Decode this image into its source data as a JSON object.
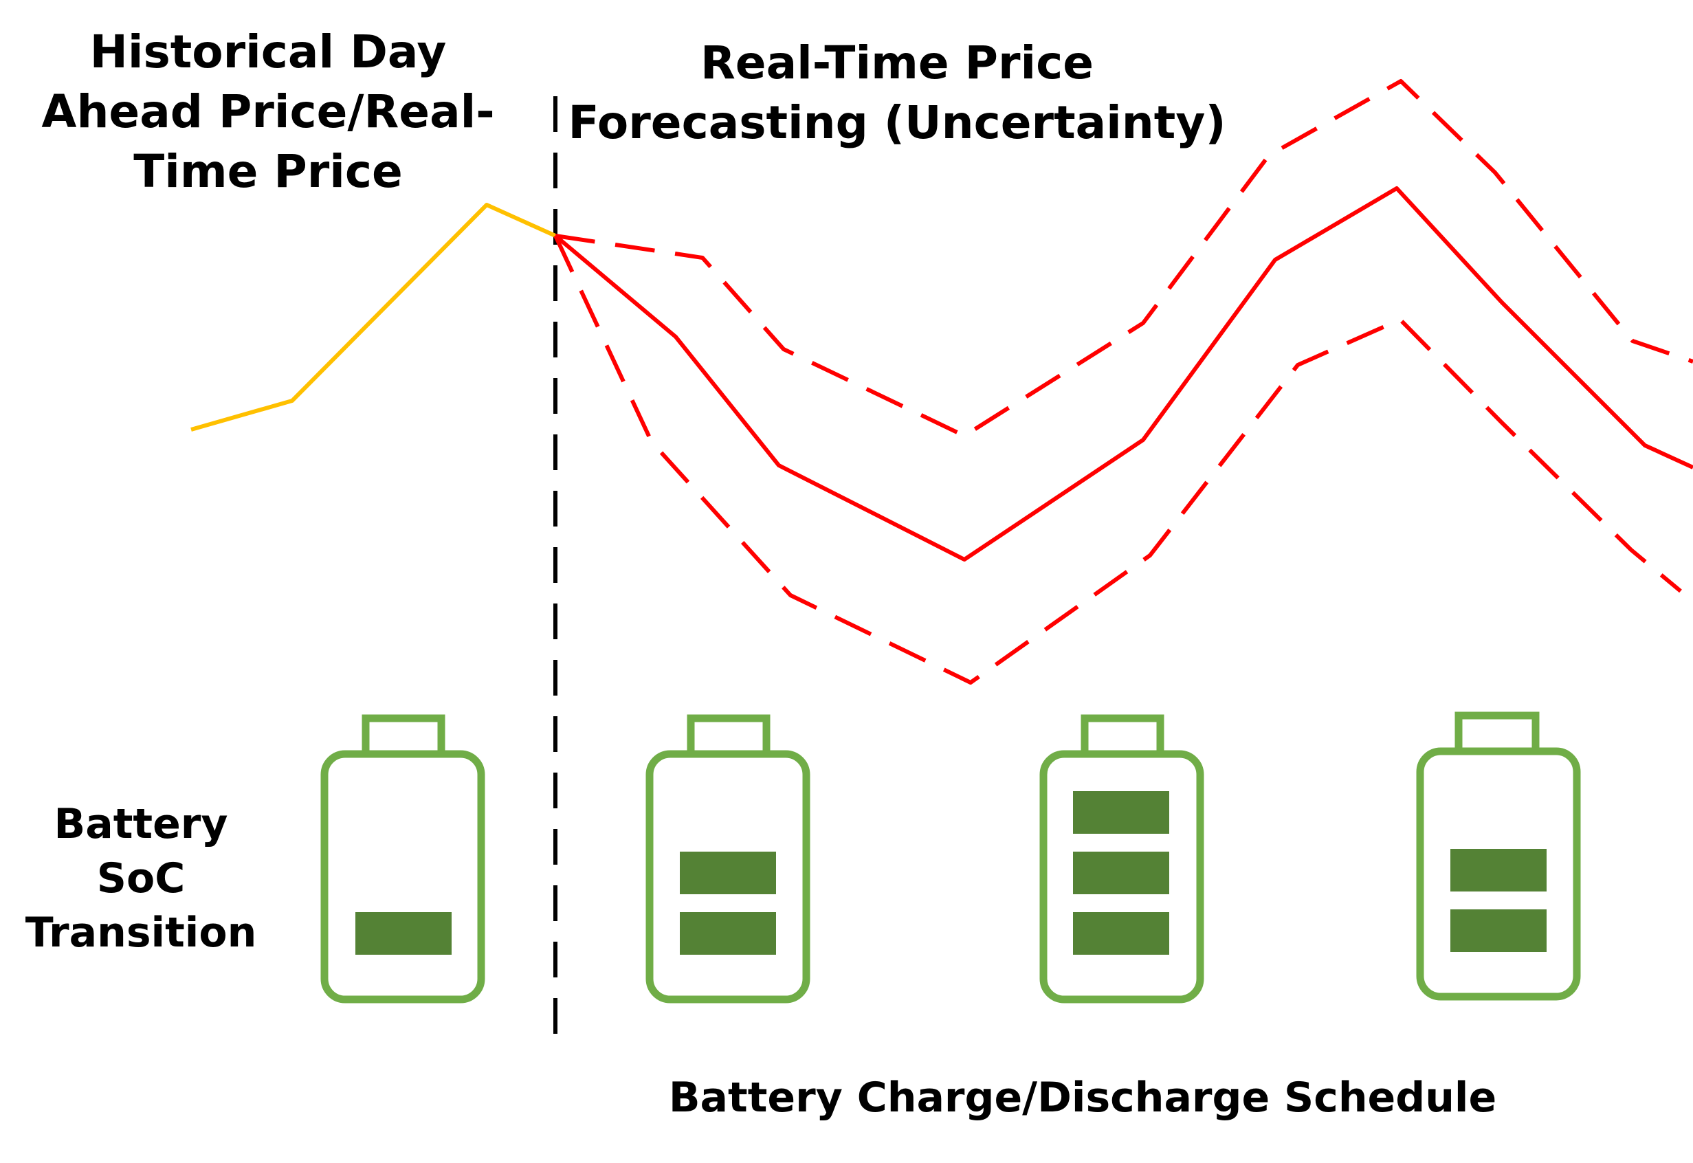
{
  "labels": {
    "historical": [
      "Historical Day",
      "Ahead Price/Real-",
      "Time Price"
    ],
    "forecast": [
      "Real-Time Price",
      "Forecasting (Uncertainty)"
    ],
    "soc": [
      "Battery",
      "SoC",
      "Transition"
    ],
    "schedule": "Battery Charge/Discharge Schedule"
  },
  "colors": {
    "historical_line": "#FFC000",
    "forecast_line": "#FF0000",
    "divider": "#000000",
    "battery_outline": "#70AD47",
    "battery_fill": "#548235"
  },
  "batteries": [
    {
      "filled_bars": 1
    },
    {
      "filled_bars": 2
    },
    {
      "filled_bars": 3
    },
    {
      "filled_bars": 2
    }
  ]
}
